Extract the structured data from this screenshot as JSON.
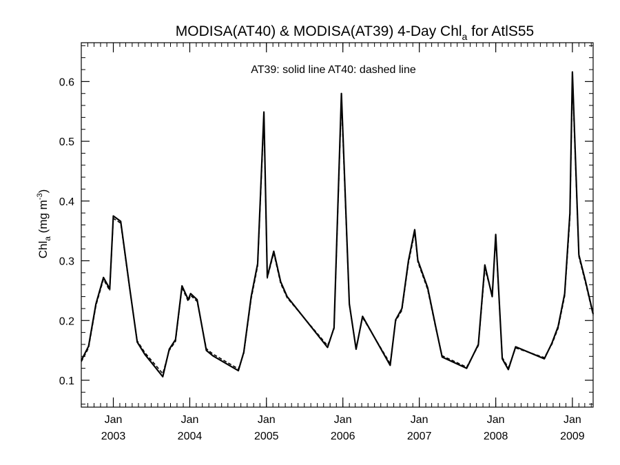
{
  "chart_data": {
    "type": "line",
    "title_main": "MODISA(AT40) & MODISA(AT39) 4-Day Chl",
    "title_sub": "a",
    "title_tail": " for AtlS55",
    "ylabel_main": "Chl",
    "ylabel_sub": "a",
    "ylabel_units": " (mg m",
    "ylabel_sup": "-3",
    "ylabel_close": ")",
    "annotation": "AT39: solid line   AT40: dashed line",
    "xlim": [
      "2002-08-01",
      "2009-04-10"
    ],
    "ylim": [
      0.055,
      0.665
    ],
    "yticks": [
      0.1,
      0.2,
      0.3,
      0.4,
      0.5,
      0.6
    ],
    "ytick_labels": [
      "0.1",
      "0.2",
      "0.3",
      "0.4",
      "0.5",
      "0.6"
    ],
    "xticks": [
      {
        "date": "2003-01-01",
        "month": "Jan",
        "year": "2003"
      },
      {
        "date": "2004-01-01",
        "month": "Jan",
        "year": "2004"
      },
      {
        "date": "2005-01-01",
        "month": "Jan",
        "year": "2005"
      },
      {
        "date": "2006-01-01",
        "month": "Jan",
        "year": "2006"
      },
      {
        "date": "2007-01-01",
        "month": "Jan",
        "year": "2007"
      },
      {
        "date": "2008-01-01",
        "month": "Jan",
        "year": "2008"
      },
      {
        "date": "2009-01-01",
        "month": "Jan",
        "year": "2009"
      }
    ],
    "series": [
      {
        "name": "AT39",
        "style": "solid",
        "points": [
          [
            "2002-08-01",
            0.133
          ],
          [
            "2002-09-05",
            0.157
          ],
          [
            "2002-10-10",
            0.228
          ],
          [
            "2002-11-15",
            0.272
          ],
          [
            "2002-12-15",
            0.253
          ],
          [
            "2003-01-01",
            0.375
          ],
          [
            "2003-02-05",
            0.366
          ],
          [
            "2003-03-20",
            0.255
          ],
          [
            "2003-04-25",
            0.164
          ],
          [
            "2003-06-01",
            0.143
          ],
          [
            "2003-07-15",
            0.124
          ],
          [
            "2003-08-25",
            0.106
          ],
          [
            "2003-09-25",
            0.152
          ],
          [
            "2003-10-25",
            0.168
          ],
          [
            "2003-11-25",
            0.258
          ],
          [
            "2003-12-25",
            0.235
          ],
          [
            "2004-01-05",
            0.245
          ],
          [
            "2004-02-05",
            0.235
          ],
          [
            "2004-03-20",
            0.15
          ],
          [
            "2004-04-20",
            0.141
          ],
          [
            "2004-08-20",
            0.116
          ],
          [
            "2004-09-15",
            0.147
          ],
          [
            "2004-10-20",
            0.24
          ],
          [
            "2004-11-20",
            0.295
          ],
          [
            "2004-12-20",
            0.549
          ],
          [
            "2005-01-05",
            0.273
          ],
          [
            "2005-02-05",
            0.316
          ],
          [
            "2005-03-10",
            0.265
          ],
          [
            "2005-04-10",
            0.24
          ],
          [
            "2005-10-20",
            0.155
          ],
          [
            "2005-11-20",
            0.188
          ],
          [
            "2005-12-25",
            0.58
          ],
          [
            "2006-02-01",
            0.228
          ],
          [
            "2006-03-05",
            0.152
          ],
          [
            "2006-04-05",
            0.207
          ],
          [
            "2006-08-15",
            0.125
          ],
          [
            "2006-09-10",
            0.201
          ],
          [
            "2006-10-10",
            0.22
          ],
          [
            "2006-11-10",
            0.3
          ],
          [
            "2006-12-10",
            0.352
          ],
          [
            "2006-12-25",
            0.301
          ],
          [
            "2007-02-10",
            0.255
          ],
          [
            "2007-03-20",
            0.19
          ],
          [
            "2007-04-20",
            0.139
          ],
          [
            "2007-08-15",
            0.12
          ],
          [
            "2007-10-10",
            0.16
          ],
          [
            "2007-11-10",
            0.293
          ],
          [
            "2007-12-15",
            0.24
          ],
          [
            "2008-01-01",
            0.344
          ],
          [
            "2008-02-01",
            0.136
          ],
          [
            "2008-03-01",
            0.118
          ],
          [
            "2008-04-05",
            0.156
          ],
          [
            "2008-08-20",
            0.136
          ],
          [
            "2008-09-25",
            0.162
          ],
          [
            "2008-10-25",
            0.19
          ],
          [
            "2008-11-25",
            0.245
          ],
          [
            "2008-12-20",
            0.38
          ],
          [
            "2009-01-01",
            0.616
          ],
          [
            "2009-02-01",
            0.31
          ],
          [
            "2009-03-05",
            0.265
          ],
          [
            "2009-04-10",
            0.211
          ]
        ]
      },
      {
        "name": "AT40",
        "style": "dashed",
        "points": [
          [
            "2002-08-01",
            0.131
          ],
          [
            "2002-09-05",
            0.154
          ],
          [
            "2002-10-10",
            0.225
          ],
          [
            "2002-11-15",
            0.269
          ],
          [
            "2002-12-15",
            0.25
          ],
          [
            "2003-01-01",
            0.371
          ],
          [
            "2003-02-05",
            0.363
          ],
          [
            "2003-03-20",
            0.253
          ],
          [
            "2003-04-25",
            0.166
          ],
          [
            "2003-06-01",
            0.146
          ],
          [
            "2003-07-15",
            0.128
          ],
          [
            "2003-08-25",
            0.111
          ],
          [
            "2003-09-25",
            0.15
          ],
          [
            "2003-10-25",
            0.165
          ],
          [
            "2003-11-25",
            0.255
          ],
          [
            "2003-12-25",
            0.232
          ],
          [
            "2004-01-05",
            0.242
          ],
          [
            "2004-02-05",
            0.232
          ],
          [
            "2004-03-20",
            0.153
          ],
          [
            "2004-04-20",
            0.144
          ],
          [
            "2004-08-20",
            0.119
          ],
          [
            "2004-09-15",
            0.145
          ],
          [
            "2004-10-20",
            0.236
          ],
          [
            "2004-11-20",
            0.291
          ],
          [
            "2004-12-20",
            0.54
          ],
          [
            "2005-01-05",
            0.271
          ],
          [
            "2005-02-05",
            0.313
          ],
          [
            "2005-03-10",
            0.262
          ],
          [
            "2005-04-10",
            0.238
          ],
          [
            "2005-10-20",
            0.158
          ],
          [
            "2005-11-20",
            0.186
          ],
          [
            "2005-12-25",
            0.57
          ],
          [
            "2006-02-01",
            0.226
          ],
          [
            "2006-03-05",
            0.153
          ],
          [
            "2006-04-05",
            0.205
          ],
          [
            "2006-08-15",
            0.128
          ],
          [
            "2006-09-10",
            0.199
          ],
          [
            "2006-10-10",
            0.217
          ],
          [
            "2006-11-10",
            0.296
          ],
          [
            "2006-12-10",
            0.348
          ],
          [
            "2006-12-25",
            0.298
          ],
          [
            "2007-02-10",
            0.252
          ],
          [
            "2007-03-20",
            0.188
          ],
          [
            "2007-04-20",
            0.141
          ],
          [
            "2007-08-15",
            0.122
          ],
          [
            "2007-10-10",
            0.158
          ],
          [
            "2007-11-10",
            0.286
          ],
          [
            "2007-12-15",
            0.244
          ],
          [
            "2008-01-01",
            0.338
          ],
          [
            "2008-02-01",
            0.138
          ],
          [
            "2008-03-01",
            0.121
          ],
          [
            "2008-04-05",
            0.154
          ],
          [
            "2008-08-20",
            0.138
          ],
          [
            "2008-09-25",
            0.16
          ],
          [
            "2008-10-25",
            0.187
          ],
          [
            "2008-11-25",
            0.241
          ],
          [
            "2008-12-20",
            0.372
          ],
          [
            "2009-01-01",
            0.605
          ],
          [
            "2009-02-01",
            0.307
          ],
          [
            "2009-03-05",
            0.262
          ],
          [
            "2009-04-10",
            0.209
          ]
        ]
      }
    ],
    "grid": false,
    "line_color": "#000000"
  }
}
